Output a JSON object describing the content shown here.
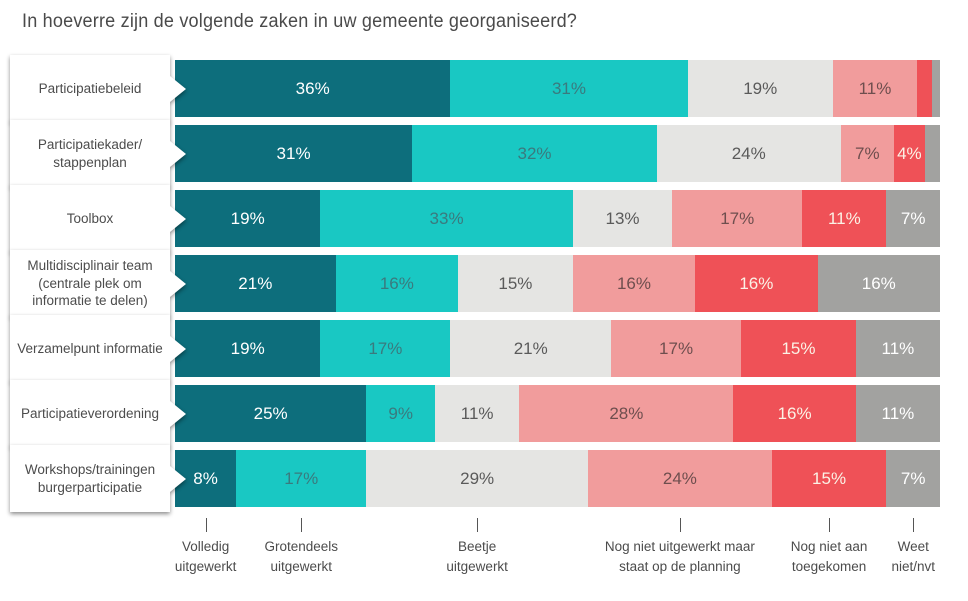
{
  "title": "In hoeverre zijn de volgende zaken in uw gemeente georganiseerd?",
  "chart_data": {
    "type": "bar",
    "orientation": "horizontal",
    "stacked": true,
    "unit": "%",
    "xlim": [
      0,
      100
    ],
    "grid": false,
    "legend_position": "bottom",
    "series": [
      {
        "name": "Volledig uitgewerkt",
        "color": "#0D6E7C",
        "label_color": "#FFFFFF"
      },
      {
        "name": "Grotendeels uitgewerkt",
        "color": "#19C8C3",
        "label_color": "#3A7A7E"
      },
      {
        "name": "Beetje uitgewerkt",
        "color": "#E5E5E3",
        "label_color": "#5A5A5A"
      },
      {
        "name": "Nog niet uitgewerkt maar staat op de planning",
        "color": "#F19C9C",
        "label_color": "#6E4E4E"
      },
      {
        "name": "Nog niet aan toegekomen",
        "color": "#EF5157",
        "label_color": "#FBF2E6"
      },
      {
        "name": "Weet niet/nvt",
        "color": "#A2A2A0",
        "label_color": "#FFFFFF"
      }
    ],
    "rows": [
      {
        "label_lines": [
          "Participatiebeleid"
        ],
        "values": [
          36,
          31,
          19,
          11,
          2,
          1
        ],
        "labels": [
          "36%",
          "31%",
          "19%",
          "11%",
          "",
          ""
        ]
      },
      {
        "label_lines": [
          "Participatiekader/",
          "stappenplan"
        ],
        "values": [
          31,
          32,
          24,
          7,
          4,
          2
        ],
        "labels": [
          "31%",
          "32%",
          "24%",
          "7%",
          "4%",
          ""
        ]
      },
      {
        "label_lines": [
          "Toolbox"
        ],
        "values": [
          19,
          33,
          13,
          17,
          11,
          7
        ],
        "labels": [
          "19%",
          "33%",
          "13%",
          "17%",
          "11%",
          "7%"
        ]
      },
      {
        "label_lines": [
          "Multidisciplinair team",
          "(centrale plek om",
          "informatie te delen)"
        ],
        "values": [
          21,
          16,
          15,
          16,
          16,
          16
        ],
        "labels": [
          "21%",
          "16%",
          "15%",
          "16%",
          "16%",
          "16%"
        ]
      },
      {
        "label_lines": [
          "Verzamelpunt informatie"
        ],
        "values": [
          19,
          17,
          21,
          17,
          15,
          11
        ],
        "labels": [
          "19%",
          "17%",
          "21%",
          "17%",
          "15%",
          "11%"
        ]
      },
      {
        "label_lines": [
          "Participatieverordening"
        ],
        "values": [
          25,
          9,
          11,
          28,
          16,
          11
        ],
        "labels": [
          "25%",
          "9%",
          "11%",
          "28%",
          "16%",
          "11%"
        ]
      },
      {
        "label_lines": [
          "Workshops/trainingen",
          "burgerparticipatie"
        ],
        "values": [
          8,
          17,
          29,
          24,
          15,
          7
        ],
        "labels": [
          "8%",
          "17%",
          "29%",
          "24%",
          "15%",
          "7%"
        ]
      }
    ],
    "legend_items": [
      {
        "lines": [
          "Volledig",
          "uitgewerkt"
        ]
      },
      {
        "lines": [
          "Grotendeels",
          "uitgewerkt"
        ]
      },
      {
        "lines": [
          "Beetje",
          "uitgewerkt"
        ]
      },
      {
        "lines": [
          "Nog niet uitgewerkt maar",
          "staat op de planning"
        ]
      },
      {
        "lines": [
          "Nog niet aan",
          "toegekomen"
        ]
      },
      {
        "lines": [
          "Weet",
          "niet/nvt"
        ]
      }
    ]
  }
}
